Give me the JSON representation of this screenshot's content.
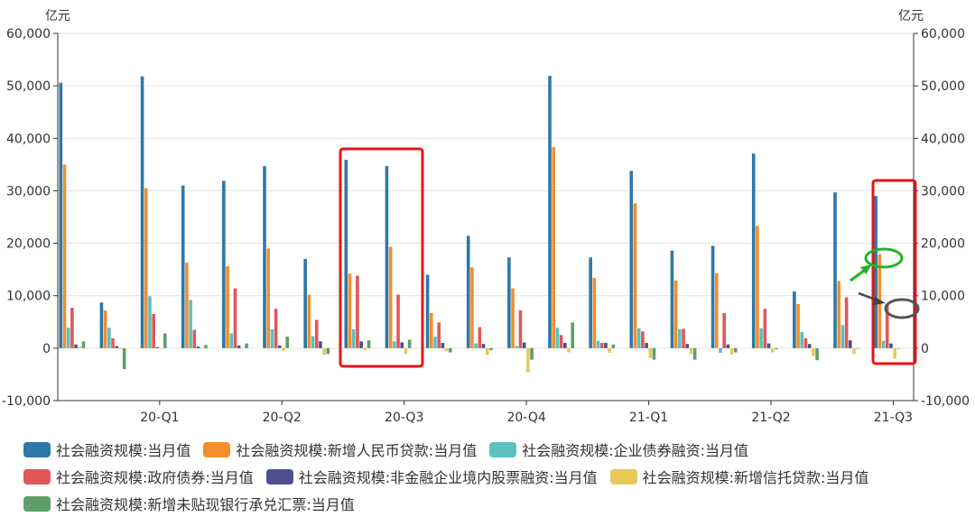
{
  "chart_data": {
    "type": "bar",
    "yunit_left": "亿元",
    "yunit_right": "亿元",
    "ylim": [
      -10000,
      60000
    ],
    "yticks": [
      "-10,000",
      "0",
      "10,000",
      "20,000",
      "30,000",
      "40,000",
      "50,000",
      "60,000"
    ],
    "xticks": [
      "20-Q1",
      "20-Q2",
      "20-Q3",
      "20-Q4",
      "21-Q1",
      "21-Q2",
      "21-Q3"
    ],
    "periods": [
      "2020-01",
      "2020-02",
      "2020-03",
      "2020-04",
      "2020-05",
      "2020-06",
      "2020-07",
      "2020-08",
      "2020-09",
      "2020-10",
      "2020-11",
      "2020-12",
      "2021-01",
      "2021-02",
      "2021-03",
      "2021-04",
      "2021-05",
      "2021-06",
      "2021-07",
      "2021-08",
      "2021-09"
    ],
    "series": [
      {
        "name": "社会融资规模:当月值",
        "color": "#2e78a8",
        "values": [
          50600,
          8700,
          51800,
          31000,
          31900,
          34700,
          17000,
          35900,
          34700,
          14000,
          21400,
          17300,
          51900,
          17300,
          33800,
          18600,
          19500,
          37100,
          10800,
          29700,
          29000
        ]
      },
      {
        "name": "社会融资规模:新增人民币贷款:当月值",
        "color": "#f28e2b",
        "values": [
          35000,
          7200,
          30500,
          16300,
          15600,
          19000,
          10200,
          14200,
          19300,
          6700,
          15400,
          11400,
          38300,
          13400,
          27600,
          12900,
          14300,
          23300,
          8400,
          12800,
          17900
        ]
      },
      {
        "name": "社会融资规模:企业债券融资:当月值",
        "color": "#5bc0c0",
        "values": [
          3900,
          3900,
          9900,
          9200,
          2800,
          3600,
          2300,
          3600,
          1300,
          2200,
          900,
          400,
          3900,
          1400,
          3800,
          3600,
          -900,
          3800,
          3100,
          4400,
          1400
        ]
      },
      {
        "name": "社会融资规模:政府债券:当月值",
        "color": "#e15759",
        "values": [
          7700,
          1900,
          6500,
          3500,
          11400,
          7500,
          5400,
          13800,
          10200,
          4900,
          4000,
          7200,
          2500,
          1000,
          3200,
          3700,
          6700,
          7500,
          1900,
          9700,
          8200
        ]
      },
      {
        "name": "社会融资规模:非金融企业境内股票融资:当月值",
        "color": "#4e4f8c",
        "values": [
          700,
          400,
          200,
          300,
          500,
          500,
          1300,
          1300,
          1100,
          1000,
          800,
          1100,
          1000,
          1000,
          1000,
          800,
          700,
          900,
          800,
          1500,
          900
        ]
      },
      {
        "name": "社会融资规模:新增信托贷款:当月值",
        "color": "#e8c95a",
        "values": [
          300,
          -200,
          0,
          -100,
          -100,
          -500,
          -1300,
          -400,
          -1100,
          -600,
          -1300,
          -4600,
          -800,
          -900,
          -1900,
          -1100,
          -1200,
          -800,
          -1500,
          -1100,
          -2000
        ]
      },
      {
        "name": "社会融资规模:新增未贴现银行承兑汇票:当月值",
        "color": "#5d9e6b",
        "values": [
          1300,
          -4000,
          2800,
          600,
          900,
          2200,
          -1100,
          1500,
          1600,
          -800,
          -400,
          -2200,
          4900,
          700,
          -2200,
          -2200,
          -800,
          -200,
          -2300,
          0,
          0
        ]
      }
    ],
    "legend_position": "bottom",
    "grid": true,
    "highlights": [
      "red box around 2020-08 and 2020-09",
      "red box around 2021-09",
      "green ellipse around 2021-09 new RMB loans bar with green arrow",
      "dark ellipse around 2021-09 government bonds bar with dark arrow"
    ]
  }
}
